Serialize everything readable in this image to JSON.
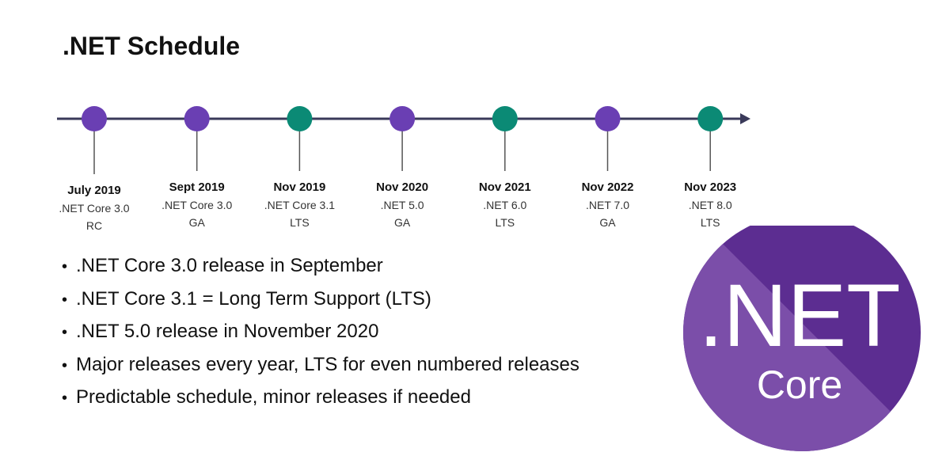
{
  "title": ".NET Schedule",
  "timeline": {
    "milestones": [
      {
        "date": "July 2019",
        "lines": [
          ".NET Core 3.0",
          "RC"
        ],
        "kind": "release"
      },
      {
        "date": "Sept 2019",
        "lines": [
          ".NET Core 3.0",
          "GA"
        ],
        "kind": "release"
      },
      {
        "date": "Nov 2019",
        "lines": [
          ".NET Core 3.1",
          "LTS"
        ],
        "kind": "lts"
      },
      {
        "date": "Nov 2020",
        "lines": [
          ".NET 5.0",
          "GA"
        ],
        "kind": "release"
      },
      {
        "date": "Nov 2021",
        "lines": [
          ".NET 6.0",
          "LTS"
        ],
        "kind": "lts"
      },
      {
        "date": "Nov 2022",
        "lines": [
          ".NET 7.0",
          "GA"
        ],
        "kind": "release"
      },
      {
        "date": "Nov 2023",
        "lines": [
          ".NET 8.0",
          "LTS"
        ],
        "kind": "lts"
      }
    ]
  },
  "bullets": [
    ".NET Core 3.0 release in September",
    ".NET Core 3.1 = Long Term Support (LTS)",
    ".NET 5.0 release in November 2020",
    "Major releases every year, LTS for even numbered releases",
    "Predictable schedule, minor releases if needed"
  ],
  "logo": {
    "line1": ".NET",
    "line2": "Core",
    "icon": "dotnet-core-logo-icon"
  },
  "colors": {
    "axis": "#3a3a5a",
    "release": "#6a3fb3",
    "lts": "#0b8a75",
    "stem": "#555555",
    "logo_dark": "#5c2d91",
    "logo_light": "#7b4ea9"
  }
}
